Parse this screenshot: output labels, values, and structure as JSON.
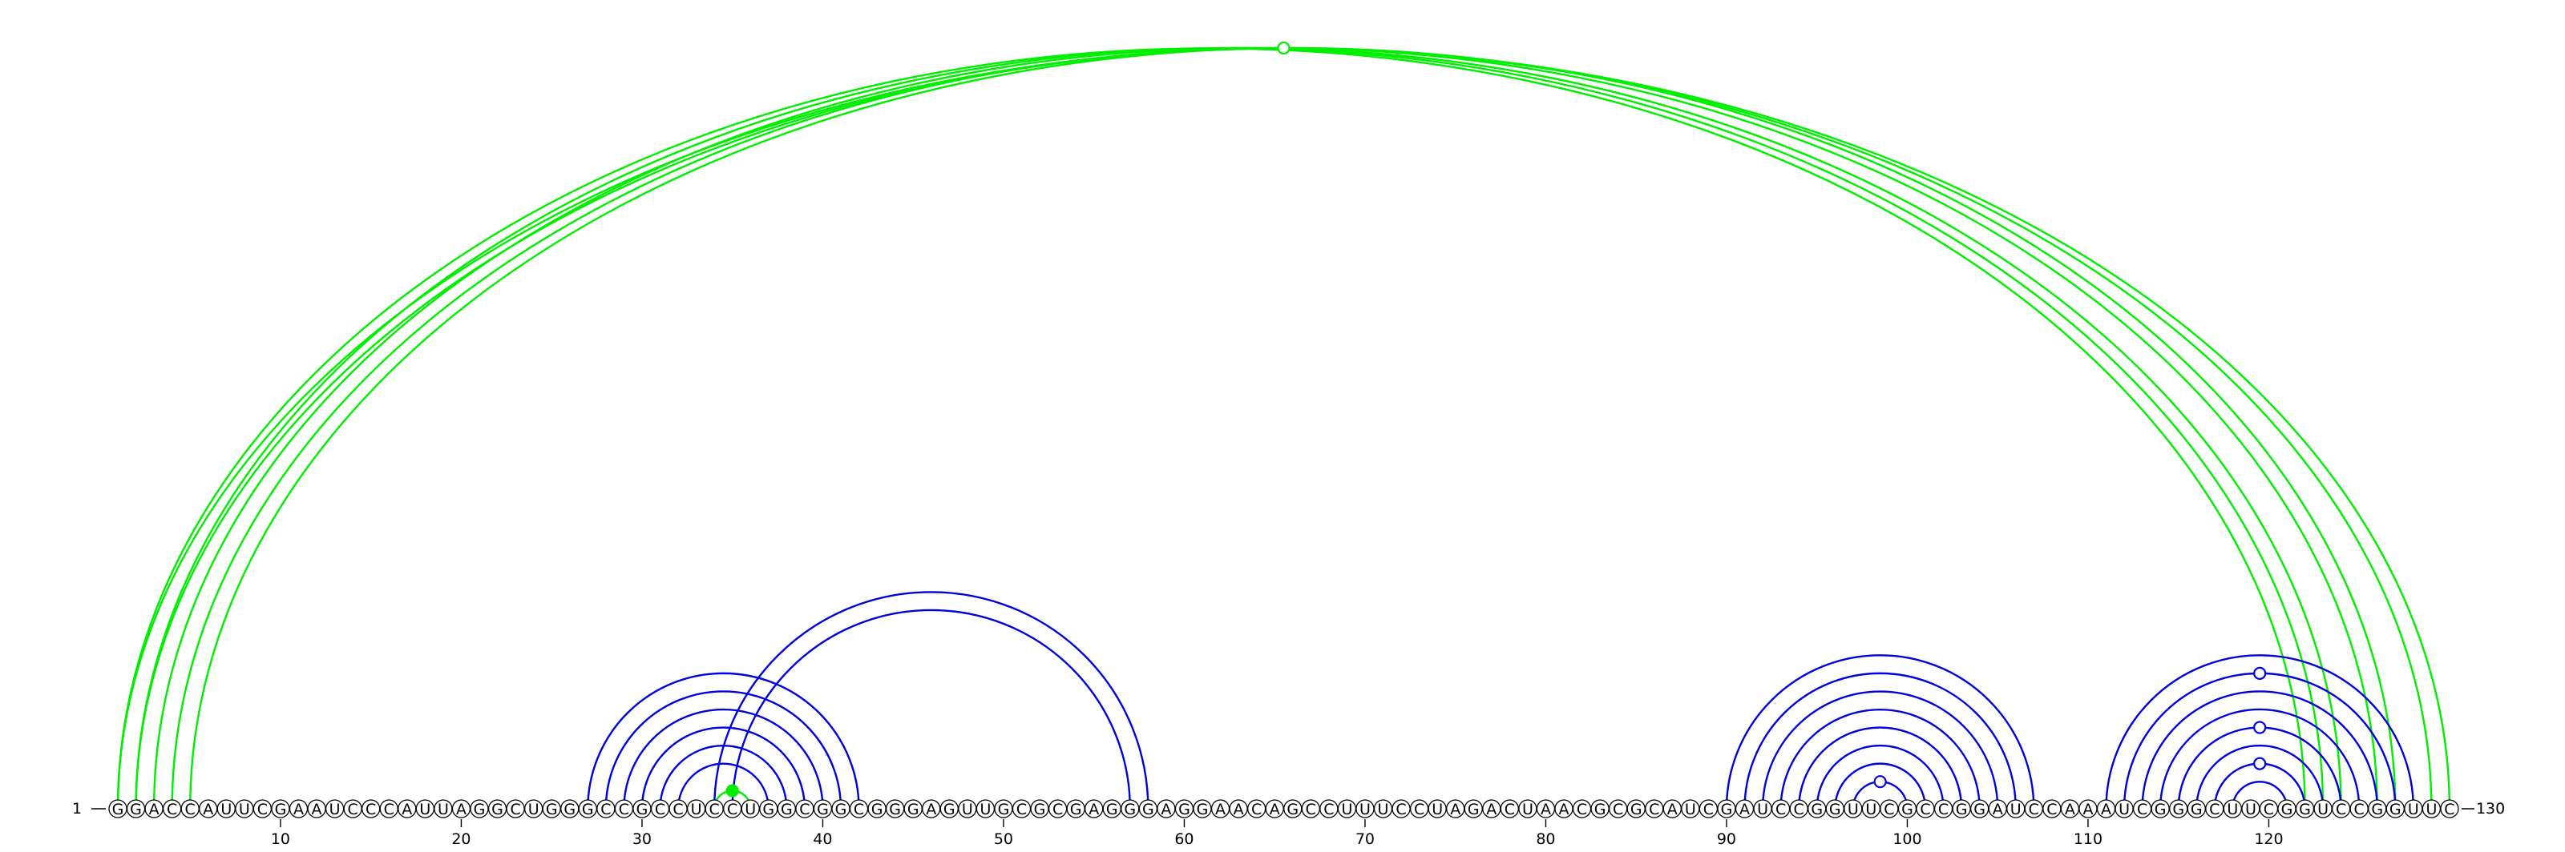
{
  "sequence": "GGACCAUUCGAAUCCCAUUAGGCUGGGCCGCCUCCUGGCGGCGGGAGUUGCGCGAGGGAGGAACAGCCUUUCCUAGACUAACGCGCAUCGAUCCGGUUCGCCGGAUCCAAAUCGGGCUUCGGUCCGGUUC",
  "start_label": "1",
  "end_label": "130",
  "tick_labels": [
    "10",
    "20",
    "30",
    "40",
    "50",
    "60",
    "70",
    "80",
    "90",
    "100",
    "110",
    "120"
  ],
  "colors": {
    "green": "#00ee00",
    "blue": "#0000dd",
    "nucleotide_border": "#000000"
  },
  "arcs": [
    {
      "i": 1,
      "j": 122,
      "color": "green"
    },
    {
      "i": 2,
      "j": 123,
      "color": "green"
    },
    {
      "i": 3,
      "j": 124,
      "color": "green"
    },
    {
      "i": 4,
      "j": 126,
      "color": "green"
    },
    {
      "i": 5,
      "j": 127,
      "color": "green"
    },
    {
      "i": 1,
      "j": 130,
      "color": "green"
    },
    {
      "i": 2,
      "j": 129,
      "color": "green"
    },
    {
      "i": 27,
      "j": 42,
      "color": "blue"
    },
    {
      "i": 28,
      "j": 41,
      "color": "blue"
    },
    {
      "i": 29,
      "j": 40,
      "color": "blue"
    },
    {
      "i": 30,
      "j": 39,
      "color": "blue"
    },
    {
      "i": 31,
      "j": 38,
      "color": "blue"
    },
    {
      "i": 32,
      "j": 37,
      "color": "blue"
    },
    {
      "i": 34,
      "j": 36,
      "color": "green"
    },
    {
      "i": 34,
      "j": 58,
      "color": "blue"
    },
    {
      "i": 35,
      "j": 57,
      "color": "blue"
    },
    {
      "i": 90,
      "j": 107,
      "color": "blue"
    },
    {
      "i": 91,
      "j": 106,
      "color": "blue"
    },
    {
      "i": 92,
      "j": 105,
      "color": "blue"
    },
    {
      "i": 93,
      "j": 104,
      "color": "blue"
    },
    {
      "i": 94,
      "j": 103,
      "color": "blue"
    },
    {
      "i": 95,
      "j": 102,
      "color": "blue"
    },
    {
      "i": 96,
      "j": 101,
      "color": "blue"
    },
    {
      "i": 97,
      "j": 100,
      "color": "blue"
    },
    {
      "i": 111,
      "j": 128,
      "color": "blue"
    },
    {
      "i": 112,
      "j": 127,
      "color": "blue"
    },
    {
      "i": 113,
      "j": 126,
      "color": "blue"
    },
    {
      "i": 114,
      "j": 125,
      "color": "blue"
    },
    {
      "i": 115,
      "j": 124,
      "color": "blue"
    },
    {
      "i": 116,
      "j": 123,
      "color": "blue"
    },
    {
      "i": 117,
      "j": 122,
      "color": "blue"
    },
    {
      "i": 118,
      "j": 121,
      "color": "blue"
    }
  ],
  "markers": [
    {
      "arc_i": 1,
      "arc_j": 130,
      "color": "green",
      "filled": false
    },
    {
      "arc_i": 34,
      "arc_j": 36,
      "color": "green",
      "filled": true
    },
    {
      "arc_i": 97,
      "arc_j": 100,
      "color": "blue",
      "filled": false
    },
    {
      "arc_i": 112,
      "arc_j": 127,
      "color": "blue",
      "filled": false
    },
    {
      "arc_i": 115,
      "arc_j": 124,
      "color": "blue",
      "filled": false
    },
    {
      "arc_i": 117,
      "arc_j": 122,
      "color": "blue",
      "filled": false
    }
  ]
}
